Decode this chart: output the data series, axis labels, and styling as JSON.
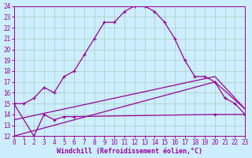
{
  "xlabel": "Windchill (Refroidissement éolien,°C)",
  "background_color": "#cceeff",
  "grid_color": "#aaccbb",
  "line_color": "#990099",
  "xlim": [
    0,
    23
  ],
  "ylim": [
    12,
    24
  ],
  "yticks": [
    12,
    13,
    14,
    15,
    16,
    17,
    18,
    19,
    20,
    21,
    22,
    23,
    24
  ],
  "xticks": [
    0,
    1,
    2,
    3,
    4,
    5,
    6,
    7,
    8,
    9,
    10,
    11,
    12,
    13,
    14,
    15,
    16,
    17,
    18,
    19,
    20,
    21,
    22,
    23
  ],
  "line1_x": [
    0,
    1,
    2,
    3,
    4,
    5,
    6,
    7,
    8,
    9,
    10,
    11,
    12,
    13,
    14,
    15,
    16,
    17,
    18,
    19,
    20,
    21,
    22,
    23
  ],
  "line1_y": [
    15.0,
    15.0,
    15.5,
    16.5,
    16.0,
    17.5,
    18.0,
    19.5,
    21.0,
    22.5,
    22.5,
    23.5,
    24.0,
    24.0,
    23.5,
    22.5,
    21.0,
    19.0,
    17.5,
    17.5,
    17.0,
    15.5,
    15.0,
    14.0
  ],
  "line2_x": [
    0,
    2,
    3,
    4,
    5,
    6,
    20,
    23
  ],
  "line2_y": [
    15.0,
    12.0,
    14.0,
    13.5,
    13.8,
    13.8,
    14.0,
    14.0
  ],
  "line3_x": [
    0,
    20,
    23
  ],
  "line3_y": [
    13.5,
    17.5,
    14.5
  ],
  "line4_x": [
    0,
    20,
    23
  ],
  "line4_y": [
    12.0,
    17.0,
    14.5
  ],
  "figsize": [
    3.2,
    2.0
  ],
  "dpi": 100,
  "tick_fontsize": 5.5,
  "label_fontsize": 6
}
